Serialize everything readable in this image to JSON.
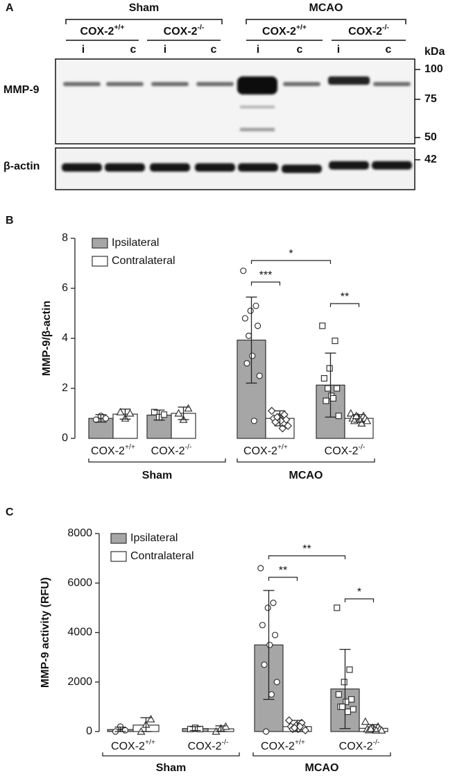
{
  "blot": {
    "panel_label": "A",
    "unit": "kDa",
    "groups": [
      {
        "label": "Sham",
        "genotypes": [
          {
            "name": "COX-2",
            "superscript": "+/+"
          },
          {
            "name": "COX-2",
            "superscript": "-/-"
          }
        ]
      },
      {
        "label": "MCAO",
        "genotypes": [
          {
            "name": "COX-2",
            "superscript": "+/+"
          },
          {
            "name": "COX-2",
            "superscript": "-/-"
          }
        ]
      }
    ],
    "lanes": [
      "i",
      "c",
      "i",
      "c",
      "i",
      "c",
      "i",
      "c"
    ],
    "rows": [
      {
        "label": "MMP-9",
        "markers": [
          100,
          75,
          50
        ]
      },
      {
        "label": "β-actin",
        "markers": [
          42
        ]
      }
    ]
  },
  "chart_data": [
    {
      "type": "bar",
      "panel_label": "B",
      "y_label": "MMP-9/β-actin",
      "categories": [
        {
          "name": "COX-2",
          "superscript": "+/+"
        },
        {
          "name": "COX-2",
          "superscript": "-/-"
        },
        {
          "name": "COX-2",
          "superscript": "+/+"
        },
        {
          "name": "COX-2",
          "superscript": "-/-"
        }
      ],
      "groups": [
        "Sham",
        "MCAO"
      ],
      "ylim": [
        0,
        8
      ],
      "yticks": [
        0,
        2,
        4,
        6,
        8
      ],
      "legend": "upper left",
      "series": [
        {
          "name": "Ipsilateral",
          "color": "#a6a6a6",
          "values": [
            0.8,
            0.93,
            3.93,
            2.13
          ],
          "errors": [
            0.15,
            0.2,
            1.72,
            1.28
          ],
          "markers": [
            "circle",
            "square",
            "circle",
            "square"
          ],
          "points": [
            [
              0.75,
              0.9,
              0.8
            ],
            [
              1.05,
              0.85,
              0.95
            ],
            [
              6.7,
              5.3,
              5.1,
              4.8,
              4.5,
              3.3,
              3.0,
              2.5,
              0.7,
              4.1
            ],
            [
              4.5,
              3.9,
              2.8,
              2.4,
              2.0,
              1.7,
              1.5,
              0.9,
              1.6,
              2.0
            ]
          ]
        },
        {
          "name": "Contralateral",
          "color": "#ffffff",
          "values": [
            0.97,
            1.0,
            0.8,
            0.8
          ],
          "errors": [
            0.2,
            0.25,
            0.3,
            0.15
          ],
          "markers": [
            "triangle",
            "triangle",
            "diamond",
            "triangle"
          ],
          "points": [
            [
              1.05,
              0.8,
              1.0
            ],
            [
              1.0,
              0.75,
              1.2
            ],
            [
              1.1,
              0.95,
              0.85,
              0.8,
              0.75,
              0.7,
              0.65,
              0.5,
              0.4,
              0.85
            ],
            [
              1.0,
              0.9,
              0.85,
              0.8,
              0.8,
              0.75,
              0.7,
              0.7,
              0.6,
              0.9
            ]
          ]
        }
      ],
      "annotations": [
        {
          "text": "*",
          "from": [
            2,
            0
          ],
          "to": [
            3,
            0
          ]
        },
        {
          "text": "***",
          "from": [
            2,
            0
          ],
          "to": [
            2,
            1
          ]
        },
        {
          "text": "**",
          "from": [
            3,
            0
          ],
          "to": [
            3,
            1
          ]
        }
      ]
    },
    {
      "type": "bar",
      "panel_label": "C",
      "y_label": "MMP-9 activity (RFU)",
      "categories": [
        {
          "name": "COX-2",
          "superscript": "+/+"
        },
        {
          "name": "COX-2",
          "superscript": "-/-"
        },
        {
          "name": "COX-2",
          "superscript": "+/+"
        },
        {
          "name": "COX-2",
          "superscript": "-/-"
        }
      ],
      "groups": [
        "Sham",
        "MCAO"
      ],
      "ylim": [
        0,
        8000
      ],
      "yticks": [
        0,
        2000,
        4000,
        6000,
        8000
      ],
      "legend": "upper left",
      "series": [
        {
          "name": "Ipsilateral",
          "color": "#a6a6a6",
          "values": [
            80,
            120,
            3500,
            1720
          ],
          "errors": [
            100,
            80,
            2200,
            1600
          ],
          "markers": [
            "circle",
            "square",
            "circle",
            "square"
          ],
          "points": [
            [
              0,
              200,
              50
            ],
            [
              100,
              150,
              100
            ],
            [
              6600,
              5200,
              5000,
              4300,
              3900,
              3500,
              2700,
              2000,
              1500,
              0
            ],
            [
              5000,
              2500,
              2000,
              1500,
              1300,
              1200,
              1000,
              900,
              800,
              1000
            ]
          ]
        },
        {
          "name": "Contralateral",
          "color": "#ffffff",
          "values": [
            260,
            110,
            200,
            130
          ],
          "errors": [
            300,
            120,
            250,
            150
          ],
          "markers": [
            "triangle",
            "triangle",
            "diamond",
            "triangle"
          ],
          "points": [
            [
              0,
              280,
              500
            ],
            [
              0,
              130,
              200
            ],
            [
              450,
              350,
              250,
              200,
              150,
              100,
              100,
              50,
              200,
              150
            ],
            [
              400,
              200,
              150,
              100,
              100,
              80,
              60,
              50,
              50,
              110
            ]
          ]
        }
      ],
      "annotations": [
        {
          "text": "**",
          "from": [
            2,
            0
          ],
          "to": [
            3,
            0
          ]
        },
        {
          "text": "**",
          "from": [
            2,
            0
          ],
          "to": [
            2,
            1
          ]
        },
        {
          "text": "*",
          "from": [
            3,
            0
          ],
          "to": [
            3,
            1
          ]
        }
      ]
    }
  ]
}
